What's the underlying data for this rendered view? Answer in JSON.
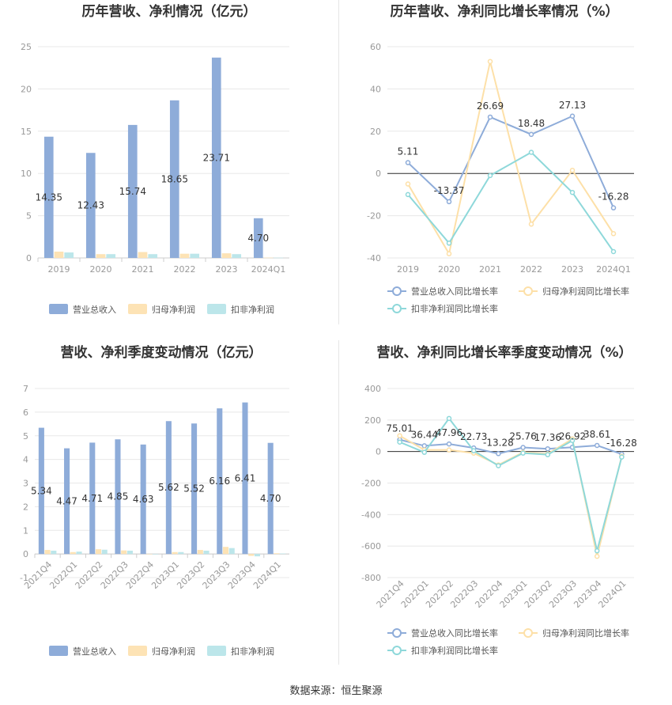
{
  "source": "数据来源：恒生聚源",
  "colors": {
    "revenue": "#8eacd9",
    "net_profit": "#fde3b5",
    "deducted_profit": "#bce6ea",
    "revenue_line": "#8eacd9",
    "net_profit_line": "#fde0a8",
    "deducted_profit_line": "#8ed8da"
  },
  "chart_data": [
    {
      "id": "annual-amount",
      "type": "bar",
      "title": "历年营收、净利情况（亿元）",
      "categories": [
        "2019",
        "2020",
        "2021",
        "2022",
        "2023",
        "2024Q1"
      ],
      "yticks": [
        "0",
        "5",
        "10",
        "15",
        "20",
        "25"
      ],
      "ylim": [
        0,
        25
      ],
      "grid": true,
      "legend_position": "bottom",
      "series": [
        {
          "name": "营业总收入",
          "color_key": "revenue",
          "values": [
            14.35,
            12.43,
            15.74,
            18.65,
            23.71,
            4.7
          ],
          "labels": [
            "14.35",
            "12.43",
            "15.74",
            "18.65",
            "23.71",
            "4.70"
          ]
        },
        {
          "name": "归母净利润",
          "color_key": "net_profit",
          "values": [
            0.75,
            0.45,
            0.7,
            0.5,
            0.55,
            0.03
          ]
        },
        {
          "name": "扣非净利润",
          "color_key": "deducted_profit",
          "values": [
            0.65,
            0.45,
            0.45,
            0.5,
            0.45,
            0.03
          ]
        }
      ]
    },
    {
      "id": "annual-growth",
      "type": "line",
      "title": "历年营收、净利同比增长率情况（%）",
      "categories": [
        "2019",
        "2020",
        "2021",
        "2022",
        "2023",
        "2024Q1"
      ],
      "yticks": [
        "-40",
        "-20",
        "0",
        "20",
        "40",
        "60"
      ],
      "ylim": [
        -40,
        60
      ],
      "grid": true,
      "legend_position": "bottom",
      "series": [
        {
          "name": "营业总收入同比增长率",
          "color_key": "revenue_line",
          "values": [
            5.11,
            -13.37,
            26.69,
            18.48,
            27.13,
            -16.28
          ],
          "labels": [
            "5.11",
            "-13.37",
            "26.69",
            "18.48",
            "27.13",
            "-16.28"
          ]
        },
        {
          "name": "归母净利润同比增长率",
          "color_key": "net_profit_line",
          "values": [
            -5,
            -38,
            53,
            -24,
            1.5,
            -28.5
          ]
        },
        {
          "name": "扣非净利润同比增长率",
          "color_key": "deducted_profit_line",
          "values": [
            -10,
            -33,
            -1,
            10,
            -9,
            -37
          ]
        }
      ]
    },
    {
      "id": "quarterly-amount",
      "type": "bar",
      "title": "营收、净利季度变动情况（亿元）",
      "categories": [
        "2021Q4",
        "2022Q1",
        "2022Q2",
        "2022Q3",
        "2022Q4",
        "2023Q1",
        "2023Q2",
        "2023Q3",
        "2023Q4",
        "2024Q1"
      ],
      "yticks": [
        "-1",
        "0",
        "1",
        "2",
        "3",
        "4",
        "5",
        "6",
        "7"
      ],
      "ylim": [
        -1,
        7
      ],
      "grid": true,
      "legend_position": "bottom",
      "series": [
        {
          "name": "营业总收入",
          "color_key": "revenue",
          "values": [
            5.34,
            4.47,
            4.71,
            4.85,
            4.63,
            5.62,
            5.52,
            6.16,
            6.41,
            4.7
          ],
          "labels": [
            "5.34",
            "4.47",
            "4.71",
            "4.85",
            "4.63",
            "5.62",
            "5.52",
            "6.16",
            "6.41",
            "4.70"
          ]
        },
        {
          "name": "归母净利润",
          "color_key": "net_profit",
          "values": [
            0.17,
            0.08,
            0.2,
            0.15,
            0.0,
            0.08,
            0.17,
            0.3,
            -0.08,
            0.03
          ]
        },
        {
          "name": "扣非净利润",
          "color_key": "deducted_profit",
          "values": [
            0.14,
            0.1,
            0.18,
            0.14,
            -0.02,
            0.08,
            0.14,
            0.25,
            -0.1,
            0.02
          ]
        }
      ]
    },
    {
      "id": "quarterly-growth",
      "type": "line",
      "title": "营收、净利同比增长率季度变动情况（%）",
      "categories": [
        "2021Q4",
        "2022Q1",
        "2022Q2",
        "2022Q3",
        "2022Q4",
        "2023Q1",
        "2023Q2",
        "2023Q3",
        "2023Q4",
        "2024Q1"
      ],
      "yticks": [
        "-800",
        "-600",
        "-400",
        "-200",
        "0",
        "200",
        "400"
      ],
      "ylim": [
        -800,
        400
      ],
      "grid": true,
      "legend_position": "bottom",
      "series": [
        {
          "name": "营业总收入同比增长率",
          "color_key": "revenue_line",
          "values": [
            75.01,
            36.44,
            47.96,
            22.73,
            -13.28,
            25.76,
            17.36,
            26.92,
            38.61,
            -16.28
          ],
          "labels": [
            "75.01",
            "36.44",
            "47.96",
            "22.73",
            "-13.28",
            "25.76",
            "17.36",
            "26.92",
            "38.61",
            "-16.28"
          ]
        },
        {
          "name": "归母净利润同比增长率",
          "color_key": "net_profit_line",
          "values": [
            100,
            10,
            10,
            -10,
            -85,
            -5,
            -15,
            80,
            -665,
            -30
          ]
        },
        {
          "name": "扣非净利润同比增长率",
          "color_key": "deducted_profit_line",
          "values": [
            60,
            -5,
            210,
            5,
            -90,
            -10,
            -20,
            70,
            -630,
            -35
          ]
        }
      ]
    }
  ]
}
